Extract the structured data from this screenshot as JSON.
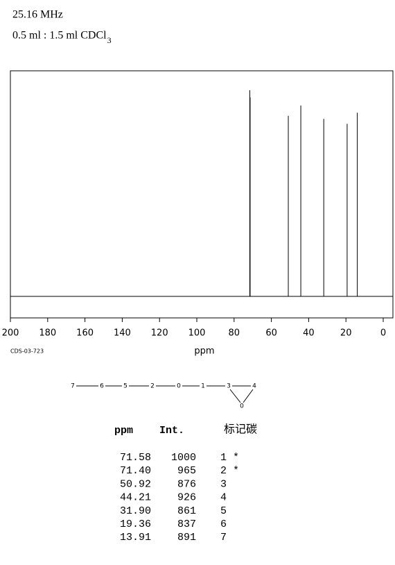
{
  "header": {
    "frequency": "25.16 MHz",
    "solvent": "0.5 ml : 1.5 ml CDCl",
    "solvent_sub": "3"
  },
  "chart_data": {
    "type": "spectrum",
    "x": [
      71.58,
      71.4,
      50.92,
      44.21,
      31.9,
      19.36,
      13.91
    ],
    "values": [
      1000,
      965,
      876,
      926,
      861,
      837,
      891
    ],
    "color": "#000000",
    "xlim": [
      200,
      0
    ],
    "xticks": [
      200,
      180,
      160,
      140,
      120,
      100,
      80,
      60,
      40,
      20,
      0
    ],
    "ylim": [
      0,
      1000
    ],
    "xlabel": "ppm"
  },
  "code": "CDS-03-723",
  "structure": {
    "nodes": [
      "7",
      "6",
      "5",
      "2",
      "0",
      "1",
      "3",
      "4",
      "0"
    ]
  },
  "table": {
    "headers": [
      "ppm",
      "Int.",
      "标记碳"
    ],
    "rows": [
      [
        "71.58",
        "1000",
        "1 *"
      ],
      [
        "71.40",
        "965",
        "2 *"
      ],
      [
        "50.92",
        "876",
        "3"
      ],
      [
        "44.21",
        "926",
        "4"
      ],
      [
        "31.90",
        "861",
        "5"
      ],
      [
        "19.36",
        "837",
        "6"
      ],
      [
        "13.91",
        "891",
        "7"
      ]
    ]
  }
}
